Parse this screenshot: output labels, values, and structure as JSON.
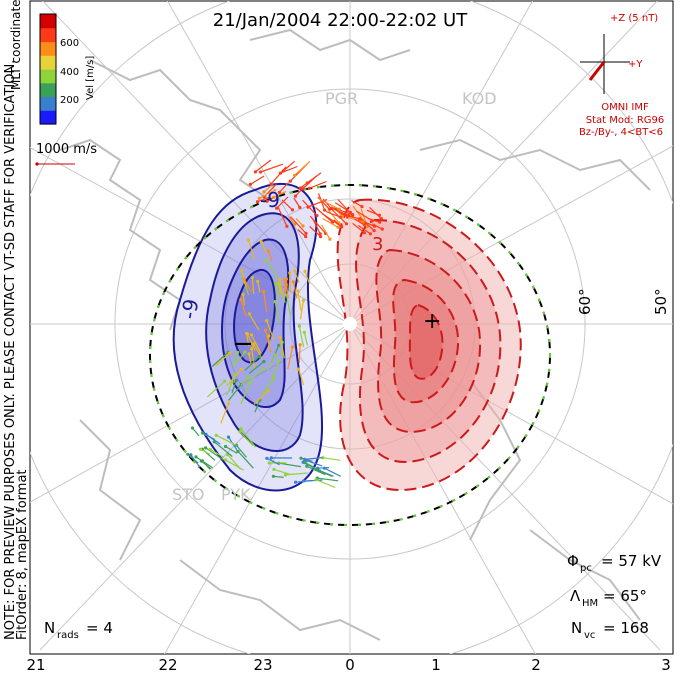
{
  "title": "21/Jan/2004 22:00-22:02 UT",
  "colorbar": {
    "ticks": [
      "600",
      "400",
      "200"
    ],
    "unit_label": "Vel [m/s]",
    "coord_label": "MLT coordinates",
    "colors": [
      "#1a1aff",
      "#3a7fd0",
      "#3aa05a",
      "#8fd33a",
      "#e8d23a",
      "#ff8c1a",
      "#ff3a1a",
      "#d40000"
    ]
  },
  "velocity_reference": "1000 m/s",
  "stations": [
    "PGR",
    "KOD",
    "STO",
    "PYK"
  ],
  "latitude_labels": [
    "60°",
    "50°"
  ],
  "imf_panel": {
    "bz_label": "+Z (5 nT)",
    "by_label": "+Y",
    "source": "OMNI IMF",
    "stat_mod": "Stat Mod: RG96",
    "condition": "Bz-/By-, 4<BT<6",
    "color": "#cc0000"
  },
  "potential_labels": {
    "negative_contour": "-9",
    "positive_contour": "3"
  },
  "extrema": {
    "min_symbol": "−",
    "max_symbol": "+"
  },
  "stats": {
    "phi_symbol": "Φ",
    "phi_sub": "pc",
    "phi_value": "= 57 kV",
    "lambda_symbol": "Λ",
    "lambda_sub": "HM",
    "lambda_value": "= 65°",
    "nvc_symbol": "N",
    "nvc_sub": "vc",
    "nvc_value": "= 168",
    "nrads_symbol": "N",
    "nrads_sub": "rads",
    "nrads_value": "= 4"
  },
  "side_note": {
    "line1": "NOTE: FOR PREVIEW PURPOSES ONLY. PLEASE CONTACT VT-SD STAFF FOR VERIFICATION.",
    "line2": "FitOrder: 8, mapEX format"
  },
  "mlt_axis": [
    "21",
    "22",
    "23",
    "0",
    "1",
    "2",
    "3"
  ],
  "colors": {
    "negative_cell": "#1a1a99",
    "positive_cell": "#cc1a1a",
    "grid": "#c8c8c8",
    "coast": "#bdbdbd"
  }
}
